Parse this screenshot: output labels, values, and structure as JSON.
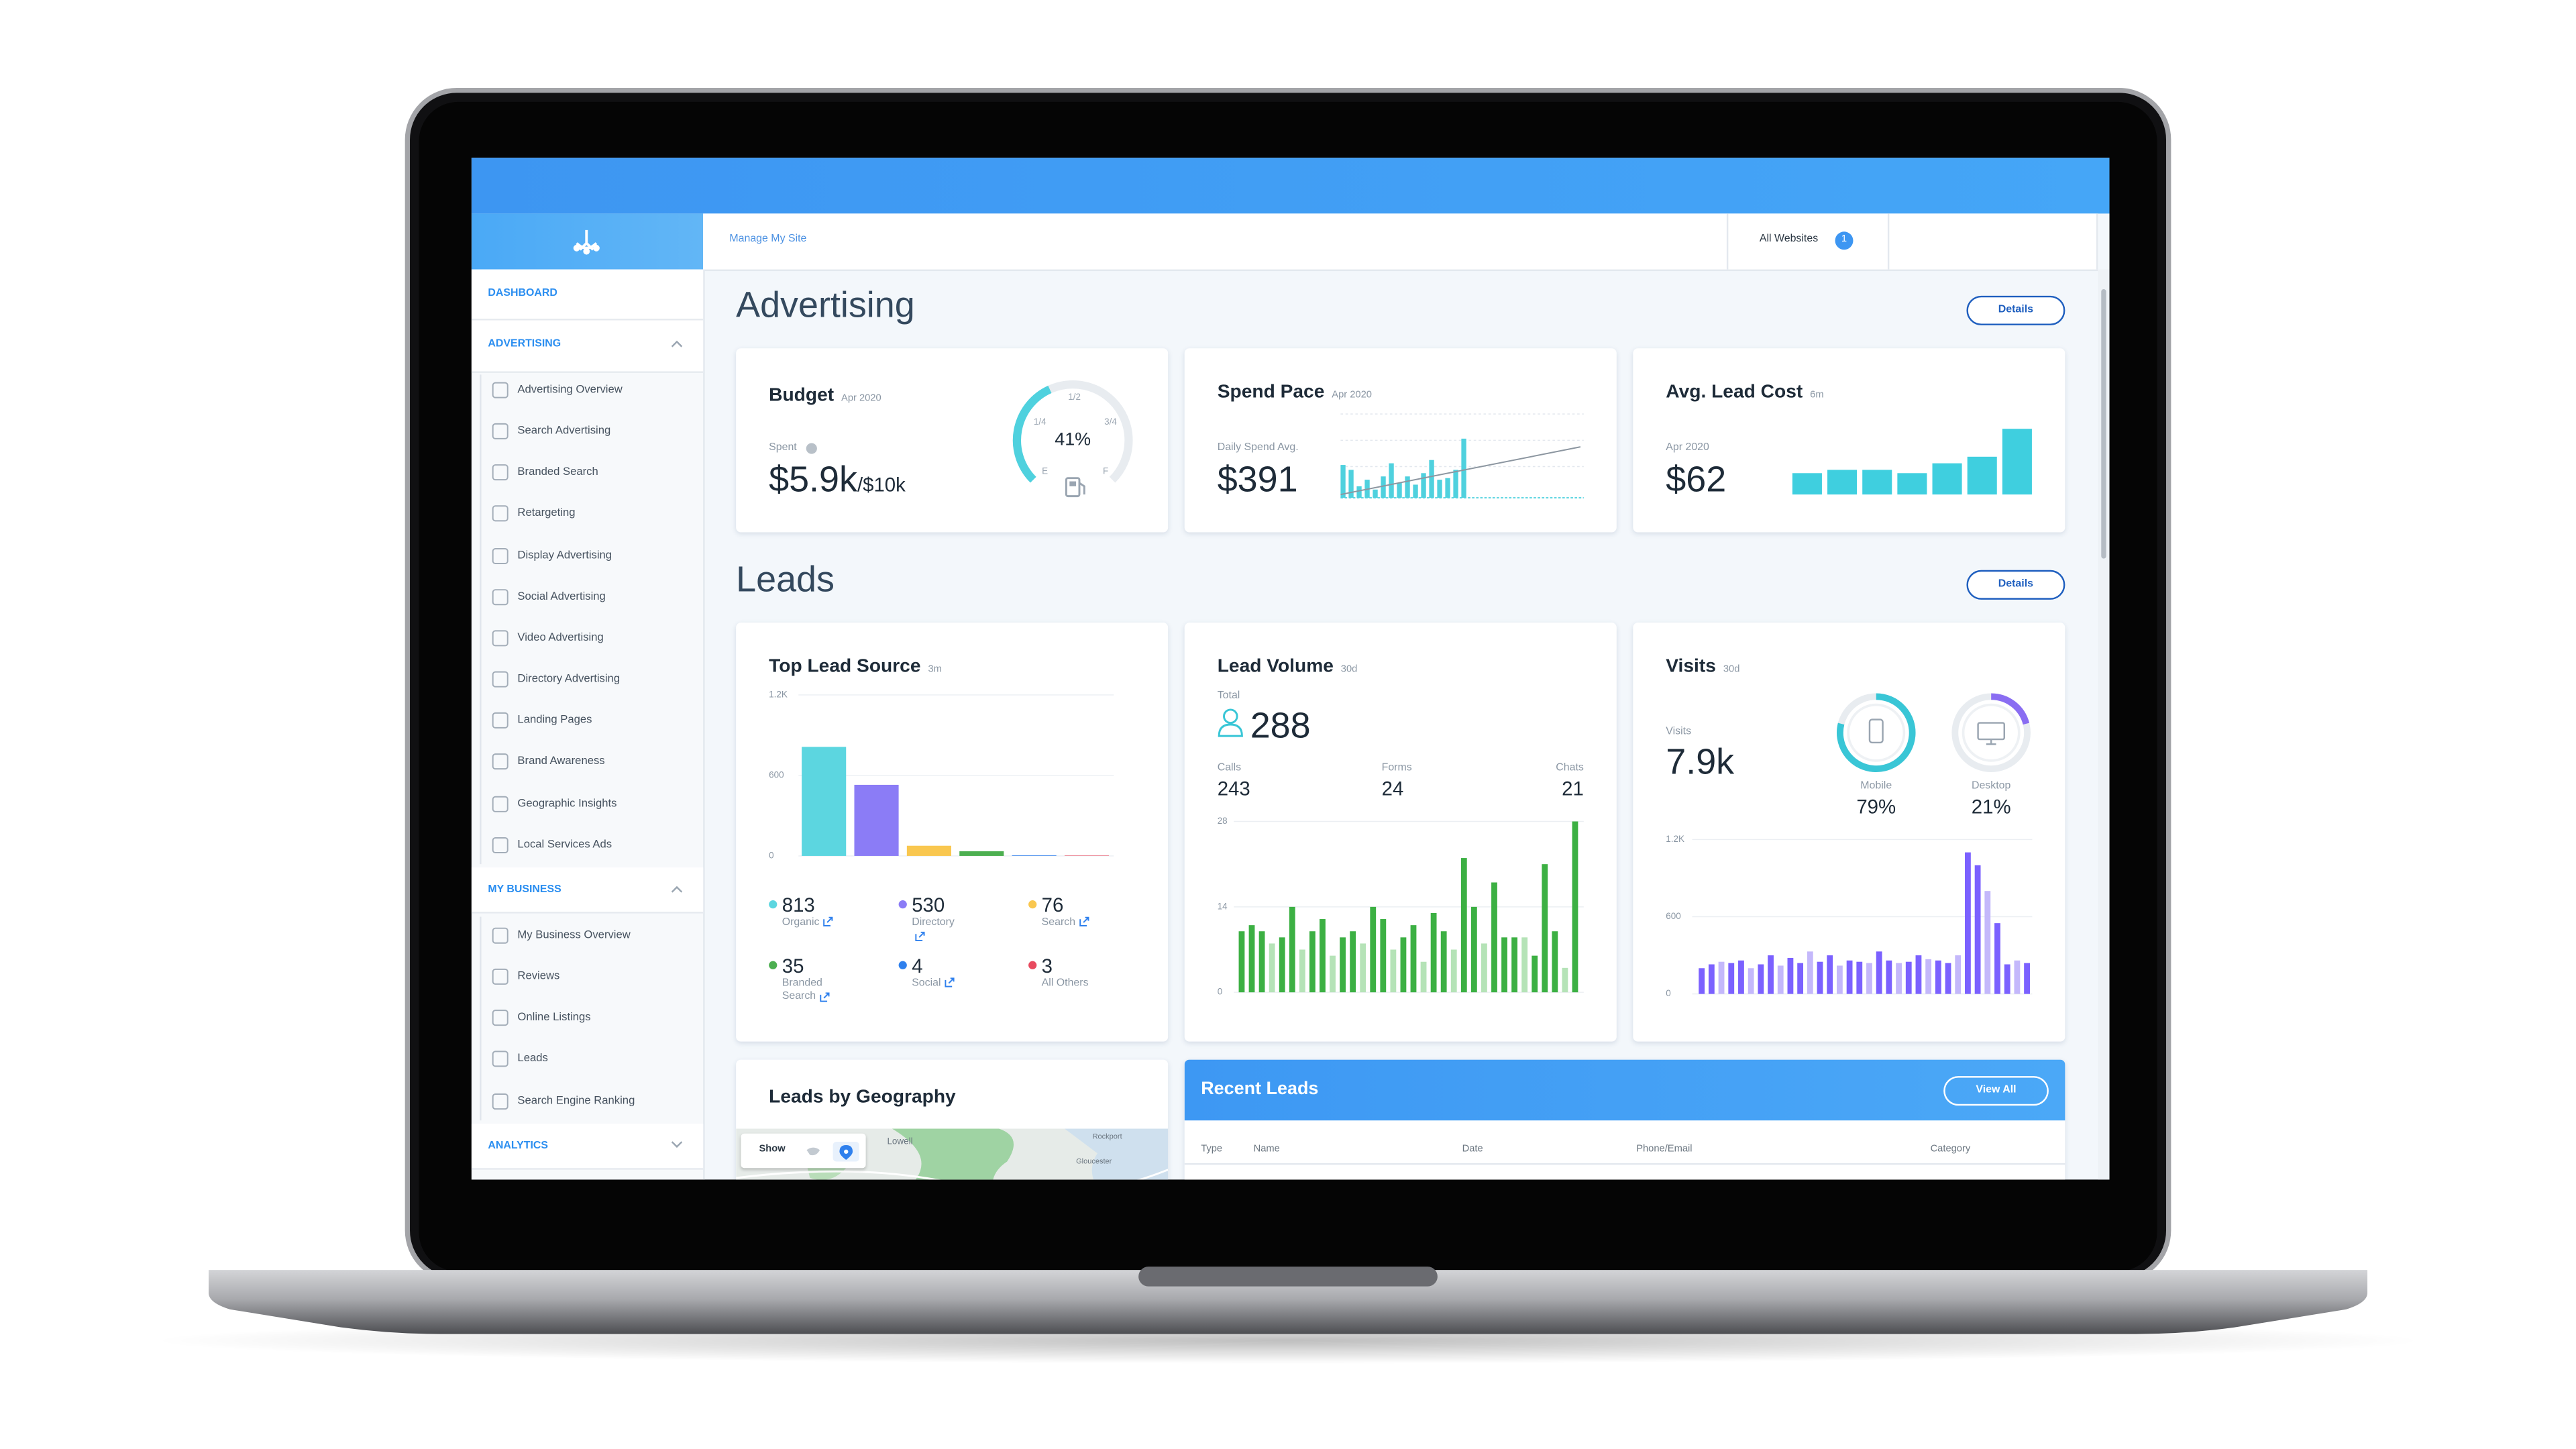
{
  "topbar": {
    "manage_site": "Manage My Site",
    "all_websites": "All Websites",
    "site_count": 1
  },
  "sidebar": {
    "dashboard": "DASHBOARD",
    "advertising": {
      "title": "ADVERTISING",
      "items": [
        "Advertising Overview",
        "Search Advertising",
        "Branded Search",
        "Retargeting",
        "Display Advertising",
        "Social Advertising",
        "Video Advertising",
        "Directory Advertising",
        "Landing Pages",
        "Brand Awareness",
        "Geographic Insights",
        "Local Services Ads"
      ]
    },
    "my_business": {
      "title": "MY BUSINESS",
      "items": [
        "My Business Overview",
        "Reviews",
        "Online Listings",
        "Leads",
        "Search Engine Ranking"
      ]
    },
    "analytics": {
      "title": "ANALYTICS"
    }
  },
  "advertising": {
    "heading": "Advertising",
    "details": "Details",
    "budget": {
      "title": "Budget",
      "period": "Apr 2020",
      "spent_label": "Spent",
      "spent": "$5.9k",
      "total": "/$10k",
      "gauge": {
        "value": 41,
        "label": "41%"
      },
      "color": "#4fd1de",
      "gauge_labels": {
        "half": "1/2",
        "quarter": "1/4",
        "three_quarters": "3/4",
        "empty": "E",
        "full": "F"
      }
    },
    "spend_pace": {
      "title": "Spend Pace",
      "period": "Apr 2020",
      "avg_label": "Daily Spend Avg.",
      "avg": "$391",
      "color": "#4fd1de",
      "values": [
        20,
        17,
        7,
        11,
        5,
        13,
        21,
        9,
        13,
        8,
        15,
        23,
        11,
        12,
        17,
        36,
        0,
        0,
        0,
        0,
        0,
        0,
        0,
        0,
        0,
        0,
        0,
        0,
        0,
        0
      ]
    },
    "avg_lead_cost": {
      "title": "Avg. Lead Cost",
      "period": "6m",
      "month": "Apr 2020",
      "value": "$62",
      "color": "#3fcfdf",
      "values": [
        13,
        15,
        15,
        13,
        19,
        23,
        40
      ]
    }
  },
  "leads": {
    "heading": "Leads",
    "details": "Details",
    "top_lead_source": {
      "title": "Top Lead Source",
      "period": "3m",
      "ylim": [
        0,
        1200
      ],
      "yticks": [
        0,
        600,
        {
          "value": 1200,
          "label": "1.2K"
        }
      ],
      "sources": [
        {
          "name": "Organic",
          "value": 813,
          "color": "#5cd6e0",
          "linked": true
        },
        {
          "name": "Directory",
          "value": 530,
          "color": "#8b7cf6",
          "linked": true
        },
        {
          "name": "Search",
          "value": 76,
          "color": "#f9c74f",
          "linked": true
        },
        {
          "name": "Branded Search",
          "value": 35,
          "color": "#4caf50",
          "linked": true
        },
        {
          "name": "Social",
          "value": 4,
          "color": "#2f80ed",
          "linked": true
        },
        {
          "name": "All Others",
          "value": 3,
          "color": "#e84a5f",
          "linked": false
        }
      ]
    },
    "lead_volume": {
      "title": "Lead Volume",
      "period": "30d",
      "total_label": "Total",
      "total": 288,
      "breakdown": [
        {
          "label": "Calls",
          "value": 243
        },
        {
          "label": "Forms",
          "value": 24
        },
        {
          "label": "Chats",
          "value": 21
        }
      ],
      "ylim": [
        0,
        28
      ],
      "yticks": [
        0,
        14,
        28
      ],
      "values": [
        10,
        11,
        10,
        8,
        9,
        14,
        7,
        10,
        12,
        6,
        9,
        10,
        8,
        14,
        12,
        7,
        9,
        11,
        5,
        13,
        10,
        7,
        22,
        14,
        8,
        18,
        9,
        9,
        9,
        6,
        21,
        10,
        4,
        28
      ],
      "colors": [
        "#3cb043",
        "#3cb043",
        "#3cb043",
        "#b5e3b7",
        "#3cb043",
        "#3cb043",
        "#b5e3b7",
        "#3cb043",
        "#3cb043",
        "#b5e3b7",
        "#3cb043",
        "#3cb043",
        "#b5e3b7",
        "#3cb043",
        "#3cb043",
        "#b5e3b7",
        "#3cb043",
        "#3cb043",
        "#b5e3b7",
        "#3cb043",
        "#3cb043",
        "#b5e3b7",
        "#3cb043",
        "#3cb043",
        "#b5e3b7",
        "#3cb043",
        "#3cb043",
        "#3cb043",
        "#b5e3b7",
        "#3cb043",
        "#3cb043",
        "#3cb043",
        "#b5e3b7",
        "#3cb043"
      ]
    },
    "visits": {
      "title": "Visits",
      "period": "30d",
      "total_label": "Visits",
      "total": "7.9k",
      "devices": [
        {
          "name": "Mobile",
          "share": {
            "value": 79,
            "label": "79%"
          },
          "color": "#39c6d6"
        },
        {
          "name": "Desktop",
          "share": {
            "value": 21,
            "label": "21%"
          },
          "color": "#8a6df2"
        }
      ],
      "ylim": [
        0,
        1200
      ],
      "yticks": [
        0,
        600,
        {
          "value": 1200,
          "label": "1.2K"
        }
      ],
      "values": [
        200,
        230,
        250,
        240,
        260,
        200,
        230,
        300,
        220,
        280,
        240,
        330,
        250,
        300,
        220,
        260,
        250,
        240,
        330,
        260,
        240,
        250,
        300,
        270,
        260,
        240,
        300,
        1100,
        1000,
        800,
        550,
        230,
        260,
        240
      ],
      "colors": [
        "#7b61ff",
        "#7b61ff",
        "#c4b8fb",
        "#7b61ff",
        "#7b61ff",
        "#c4b8fb",
        "#7b61ff",
        "#7b61ff",
        "#c4b8fb",
        "#7b61ff",
        "#7b61ff",
        "#c4b8fb",
        "#7b61ff",
        "#7b61ff",
        "#c4b8fb",
        "#7b61ff",
        "#7b61ff",
        "#c4b8fb",
        "#7b61ff",
        "#7b61ff",
        "#c4b8fb",
        "#7b61ff",
        "#7b61ff",
        "#c4b8fb",
        "#7b61ff",
        "#7b61ff",
        "#c4b8fb",
        "#7b61ff",
        "#7b61ff",
        "#c4b8fb",
        "#7b61ff",
        "#7b61ff",
        "#c4b8fb",
        "#7b61ff"
      ]
    },
    "geography": {
      "title": "Leads by Geography",
      "show": "Show",
      "places": [
        "Lowell",
        "Rockport",
        "Gloucester"
      ]
    },
    "recent": {
      "title": "Recent Leads",
      "view_all": "View All",
      "columns": [
        "Type",
        "Name",
        "Date",
        "Phone/Email",
        "Category"
      ]
    }
  }
}
